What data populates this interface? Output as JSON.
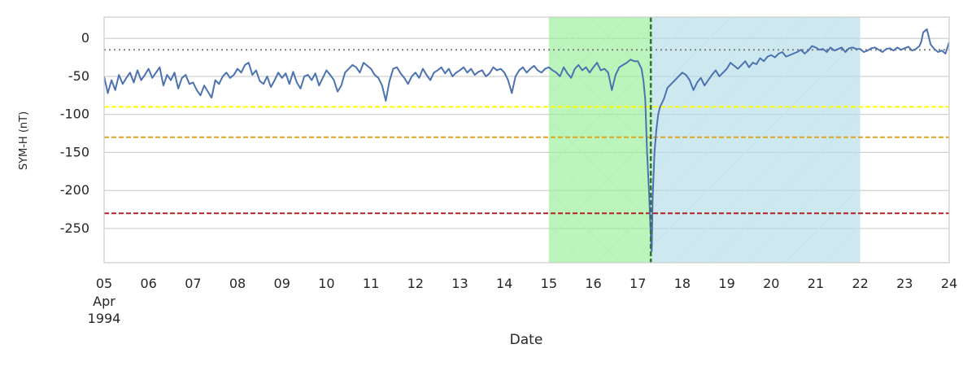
{
  "chart_data": {
    "type": "line",
    "xlabel": "Date",
    "ylabel": "SYM-H (nT)",
    "xlim": [
      "1994-04-05",
      "1994-04-24"
    ],
    "ylim": [
      -295,
      28
    ],
    "grid": true,
    "x_ticks": [
      {
        "date": "1994-04-05",
        "label": "05",
        "sub1": "Apr",
        "sub2": "1994"
      },
      {
        "date": "1994-04-06",
        "label": "06"
      },
      {
        "date": "1994-04-07",
        "label": "07"
      },
      {
        "date": "1994-04-08",
        "label": "08"
      },
      {
        "date": "1994-04-09",
        "label": "09"
      },
      {
        "date": "1994-04-10",
        "label": "10"
      },
      {
        "date": "1994-04-11",
        "label": "11"
      },
      {
        "date": "1994-04-12",
        "label": "12"
      },
      {
        "date": "1994-04-13",
        "label": "13"
      },
      {
        "date": "1994-04-14",
        "label": "14"
      },
      {
        "date": "1994-04-15",
        "label": "15"
      },
      {
        "date": "1994-04-16",
        "label": "16"
      },
      {
        "date": "1994-04-17",
        "label": "17"
      },
      {
        "date": "1994-04-18",
        "label": "18"
      },
      {
        "date": "1994-04-19",
        "label": "19"
      },
      {
        "date": "1994-04-20",
        "label": "20"
      },
      {
        "date": "1994-04-21",
        "label": "21"
      },
      {
        "date": "1994-04-22",
        "label": "22"
      },
      {
        "date": "1994-04-23",
        "label": "23"
      },
      {
        "date": "1994-04-24",
        "label": "24"
      }
    ],
    "y_ticks": [
      0,
      -50,
      -100,
      -150,
      -200,
      -250
    ],
    "regions": [
      {
        "start": "1994-04-15T00:00",
        "end": "1994-04-17T08:00",
        "color": "#90ee90",
        "hatch": "crosshatch"
      },
      {
        "start": "1994-04-17T08:00",
        "end": "1994-04-22T00:00",
        "color": "#add8e6",
        "hatch": "diagonal"
      }
    ],
    "vline": {
      "date": "1994-04-17T07:00",
      "color": "#3d6b50",
      "style": "dashed"
    },
    "hlines": [
      {
        "y": -15,
        "color": "#808080",
        "style": "dotted"
      },
      {
        "y": -90,
        "color": "#ffff00",
        "style": "dashed"
      },
      {
        "y": -130,
        "color": "#daa520",
        "style": "dashed"
      },
      {
        "y": -230,
        "color": "#b22222",
        "style": "dashed"
      }
    ],
    "series": [
      {
        "color": "#4c72b0",
        "x": [
          "1994-04-05T00:00",
          "1994-04-05T02:00",
          "1994-04-05T04:00",
          "1994-04-05T06:00",
          "1994-04-05T08:00",
          "1994-04-05T10:00",
          "1994-04-05T12:00",
          "1994-04-05T14:00",
          "1994-04-05T16:00",
          "1994-04-05T18:00",
          "1994-04-05T20:00",
          "1994-04-05T22:00",
          "1994-04-06T00:00",
          "1994-04-06T02:00",
          "1994-04-06T04:00",
          "1994-04-06T06:00",
          "1994-04-06T08:00",
          "1994-04-06T10:00",
          "1994-04-06T12:00",
          "1994-04-06T14:00",
          "1994-04-06T16:00",
          "1994-04-06T18:00",
          "1994-04-06T20:00",
          "1994-04-06T22:00",
          "1994-04-07T00:00",
          "1994-04-07T02:00",
          "1994-04-07T04:00",
          "1994-04-07T06:00",
          "1994-04-07T08:00",
          "1994-04-07T10:00",
          "1994-04-07T12:00",
          "1994-04-07T14:00",
          "1994-04-07T16:00",
          "1994-04-07T18:00",
          "1994-04-07T20:00",
          "1994-04-07T22:00",
          "1994-04-08T00:00",
          "1994-04-08T02:00",
          "1994-04-08T04:00",
          "1994-04-08T06:00",
          "1994-04-08T08:00",
          "1994-04-08T10:00",
          "1994-04-08T12:00",
          "1994-04-08T14:00",
          "1994-04-08T16:00",
          "1994-04-08T18:00",
          "1994-04-08T20:00",
          "1994-04-08T22:00",
          "1994-04-09T00:00",
          "1994-04-09T02:00",
          "1994-04-09T04:00",
          "1994-04-09T06:00",
          "1994-04-09T08:00",
          "1994-04-09T10:00",
          "1994-04-09T12:00",
          "1994-04-09T14:00",
          "1994-04-09T16:00",
          "1994-04-09T18:00",
          "1994-04-09T20:00",
          "1994-04-09T22:00",
          "1994-04-10T00:00",
          "1994-04-10T02:00",
          "1994-04-10T04:00",
          "1994-04-10T06:00",
          "1994-04-10T08:00",
          "1994-04-10T10:00",
          "1994-04-10T12:00",
          "1994-04-10T14:00",
          "1994-04-10T16:00",
          "1994-04-10T18:00",
          "1994-04-10T20:00",
          "1994-04-10T22:00",
          "1994-04-11T00:00",
          "1994-04-11T02:00",
          "1994-04-11T04:00",
          "1994-04-11T06:00",
          "1994-04-11T08:00",
          "1994-04-11T10:00",
          "1994-04-11T12:00",
          "1994-04-11T14:00",
          "1994-04-11T16:00",
          "1994-04-11T18:00",
          "1994-04-11T20:00",
          "1994-04-11T22:00",
          "1994-04-12T00:00",
          "1994-04-12T02:00",
          "1994-04-12T04:00",
          "1994-04-12T06:00",
          "1994-04-12T08:00",
          "1994-04-12T10:00",
          "1994-04-12T12:00",
          "1994-04-12T14:00",
          "1994-04-12T16:00",
          "1994-04-12T18:00",
          "1994-04-12T20:00",
          "1994-04-12T22:00",
          "1994-04-13T00:00",
          "1994-04-13T02:00",
          "1994-04-13T04:00",
          "1994-04-13T06:00",
          "1994-04-13T08:00",
          "1994-04-13T10:00",
          "1994-04-13T12:00",
          "1994-04-13T14:00",
          "1994-04-13T16:00",
          "1994-04-13T18:00",
          "1994-04-13T20:00",
          "1994-04-13T22:00",
          "1994-04-14T00:00",
          "1994-04-14T02:00",
          "1994-04-14T04:00",
          "1994-04-14T06:00",
          "1994-04-14T08:00",
          "1994-04-14T10:00",
          "1994-04-14T12:00",
          "1994-04-14T14:00",
          "1994-04-14T16:00",
          "1994-04-14T18:00",
          "1994-04-14T20:00",
          "1994-04-14T22:00",
          "1994-04-15T00:00",
          "1994-04-15T02:00",
          "1994-04-15T04:00",
          "1994-04-15T06:00",
          "1994-04-15T08:00",
          "1994-04-15T10:00",
          "1994-04-15T12:00",
          "1994-04-15T14:00",
          "1994-04-15T16:00",
          "1994-04-15T18:00",
          "1994-04-15T20:00",
          "1994-04-15T22:00",
          "1994-04-16T00:00",
          "1994-04-16T02:00",
          "1994-04-16T04:00",
          "1994-04-16T06:00",
          "1994-04-16T08:00",
          "1994-04-16T10:00",
          "1994-04-16T12:00",
          "1994-04-16T14:00",
          "1994-04-16T16:00",
          "1994-04-16T18:00",
          "1994-04-16T20:00",
          "1994-04-16T22:00",
          "1994-04-17T00:00",
          "1994-04-17T01:00",
          "1994-04-17T02:00",
          "1994-04-17T03:00",
          "1994-04-17T04:00",
          "1994-04-17T05:00",
          "1994-04-17T06:00",
          "1994-04-17T06:30",
          "1994-04-17T07:00",
          "1994-04-17T07:30",
          "1994-04-17T08:00",
          "1994-04-17T09:00",
          "1994-04-17T10:00",
          "1994-04-17T11:00",
          "1994-04-17T12:00",
          "1994-04-17T14:00",
          "1994-04-17T16:00",
          "1994-04-17T18:00",
          "1994-04-17T20:00",
          "1994-04-17T22:00",
          "1994-04-18T00:00",
          "1994-04-18T02:00",
          "1994-04-18T04:00",
          "1994-04-18T06:00",
          "1994-04-18T08:00",
          "1994-04-18T10:00",
          "1994-04-18T12:00",
          "1994-04-18T14:00",
          "1994-04-18T16:00",
          "1994-04-18T18:00",
          "1994-04-18T20:00",
          "1994-04-18T22:00",
          "1994-04-19T00:00",
          "1994-04-19T02:00",
          "1994-04-19T04:00",
          "1994-04-19T06:00",
          "1994-04-19T08:00",
          "1994-04-19T10:00",
          "1994-04-19T12:00",
          "1994-04-19T14:00",
          "1994-04-19T16:00",
          "1994-04-19T18:00",
          "1994-04-19T20:00",
          "1994-04-19T22:00",
          "1994-04-20T00:00",
          "1994-04-20T02:00",
          "1994-04-20T04:00",
          "1994-04-20T06:00",
          "1994-04-20T08:00",
          "1994-04-20T10:00",
          "1994-04-20T12:00",
          "1994-04-20T14:00",
          "1994-04-20T16:00",
          "1994-04-20T18:00",
          "1994-04-20T20:00",
          "1994-04-20T22:00",
          "1994-04-21T00:00",
          "1994-04-21T02:00",
          "1994-04-21T04:00",
          "1994-04-21T06:00",
          "1994-04-21T08:00",
          "1994-04-21T10:00",
          "1994-04-21T12:00",
          "1994-04-21T14:00",
          "1994-04-21T16:00",
          "1994-04-21T18:00",
          "1994-04-21T20:00",
          "1994-04-21T22:00",
          "1994-04-22T00:00",
          "1994-04-22T02:00",
          "1994-04-22T04:00",
          "1994-04-22T06:00",
          "1994-04-22T08:00",
          "1994-04-22T10:00",
          "1994-04-22T12:00",
          "1994-04-22T14:00",
          "1994-04-22T16:00",
          "1994-04-22T18:00",
          "1994-04-22T20:00",
          "1994-04-22T22:00",
          "1994-04-23T00:00",
          "1994-04-23T02:00",
          "1994-04-23T04:00",
          "1994-04-23T06:00",
          "1994-04-23T08:00",
          "1994-04-23T09:00",
          "1994-04-23T10:00",
          "1994-04-23T12:00",
          "1994-04-23T14:00",
          "1994-04-23T16:00",
          "1994-04-23T18:00",
          "1994-04-23T20:00",
          "1994-04-23T22:00",
          "1994-04-24T00:00"
        ],
        "y": [
          -50,
          -72,
          -55,
          -68,
          -48,
          -60,
          -52,
          -45,
          -58,
          -42,
          -55,
          -48,
          -40,
          -52,
          -45,
          -38,
          -62,
          -48,
          -55,
          -45,
          -66,
          -52,
          -48,
          -60,
          -58,
          -68,
          -75,
          -62,
          -70,
          -78,
          -55,
          -60,
          -50,
          -45,
          -52,
          -48,
          -40,
          -45,
          -35,
          -32,
          -48,
          -42,
          -56,
          -60,
          -50,
          -64,
          -55,
          -45,
          -52,
          -46,
          -60,
          -44,
          -58,
          -66,
          -50,
          -48,
          -55,
          -46,
          -62,
          -52,
          -42,
          -48,
          -55,
          -70,
          -62,
          -45,
          -40,
          -35,
          -38,
          -45,
          -32,
          -36,
          -40,
          -48,
          -52,
          -62,
          -82,
          -56,
          -40,
          -38,
          -46,
          -52,
          -60,
          -50,
          -45,
          -52,
          -40,
          -48,
          -55,
          -45,
          -42,
          -38,
          -46,
          -40,
          -50,
          -45,
          -42,
          -38,
          -45,
          -40,
          -48,
          -44,
          -42,
          -50,
          -46,
          -38,
          -42,
          -40,
          -45,
          -55,
          -72,
          -50,
          -42,
          -38,
          -45,
          -40,
          -36,
          -42,
          -45,
          -40,
          -38,
          -42,
          -45,
          -50,
          -38,
          -46,
          -52,
          -40,
          -35,
          -42,
          -38,
          -45,
          -38,
          -32,
          -42,
          -40,
          -45,
          -68,
          -48,
          -38,
          -35,
          -32,
          -28,
          -30,
          -30,
          -35,
          -40,
          -55,
          -80,
          -150,
          -200,
          -230,
          -260,
          -280,
          -210,
          -150,
          -120,
          -100,
          -90,
          -80,
          -65,
          -60,
          -55,
          -50,
          -45,
          -48,
          -55,
          -68,
          -58,
          -52,
          -62,
          -55,
          -48,
          -42,
          -50,
          -45,
          -40,
          -32,
          -36,
          -40,
          -35,
          -30,
          -38,
          -32,
          -34,
          -26,
          -30,
          -24,
          -22,
          -25,
          -20,
          -18,
          -24,
          -22,
          -20,
          -18,
          -15,
          -20,
          -16,
          -10,
          -12,
          -15,
          -14,
          -18,
          -12,
          -16,
          -14,
          -12,
          -18,
          -13,
          -12,
          -14,
          -14,
          -18,
          -16,
          -13,
          -12,
          -15,
          -18,
          -14,
          -13,
          -16,
          -12,
          -15,
          -13,
          -11,
          -16,
          -14,
          -10,
          -4,
          8,
          12,
          -8,
          -14,
          -18,
          -16,
          -20,
          -5
        ]
      }
    ]
  }
}
